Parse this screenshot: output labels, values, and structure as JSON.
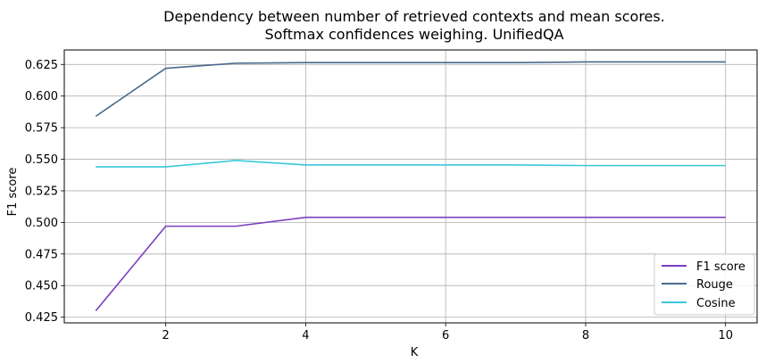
{
  "chart_data": {
    "type": "line",
    "title_lines": [
      "Dependency between number of retrieved contexts and mean scores.",
      "Softmax confidences weighing. UnifiedQA"
    ],
    "xlabel": "K",
    "ylabel": "F1 score",
    "x": [
      1,
      2,
      3,
      4,
      5,
      6,
      7,
      8,
      9,
      10
    ],
    "xlim": [
      0.55,
      10.45
    ],
    "ylim": [
      0.4205,
      0.6365
    ],
    "xticks": [
      2,
      4,
      6,
      8,
      10
    ],
    "xtick_labels": [
      "2",
      "4",
      "6",
      "8",
      "10"
    ],
    "yticks": [
      0.425,
      0.45,
      0.475,
      0.5,
      0.525,
      0.55,
      0.575,
      0.6,
      0.625
    ],
    "ytick_labels": [
      "0.425",
      "0.450",
      "0.475",
      "0.500",
      "0.525",
      "0.550",
      "0.575",
      "0.600",
      "0.625"
    ],
    "grid": true,
    "legend_position": "bottom-right",
    "series": [
      {
        "name": "F1 score",
        "color": "#7b3fbf",
        "values": [
          0.43,
          0.497,
          0.497,
          0.504,
          0.504,
          0.504,
          0.504,
          0.504,
          0.504,
          0.504
        ]
      },
      {
        "name": "Rouge",
        "color": "#466b8c",
        "values": [
          0.584,
          0.622,
          0.626,
          0.6265,
          0.6265,
          0.6265,
          0.6265,
          0.627,
          0.627,
          0.627
        ]
      },
      {
        "name": "Cosine",
        "color": "#3ac8dc",
        "values": [
          0.544,
          0.544,
          0.549,
          0.5455,
          0.5455,
          0.5455,
          0.5455,
          0.545,
          0.545,
          0.545
        ]
      }
    ]
  }
}
